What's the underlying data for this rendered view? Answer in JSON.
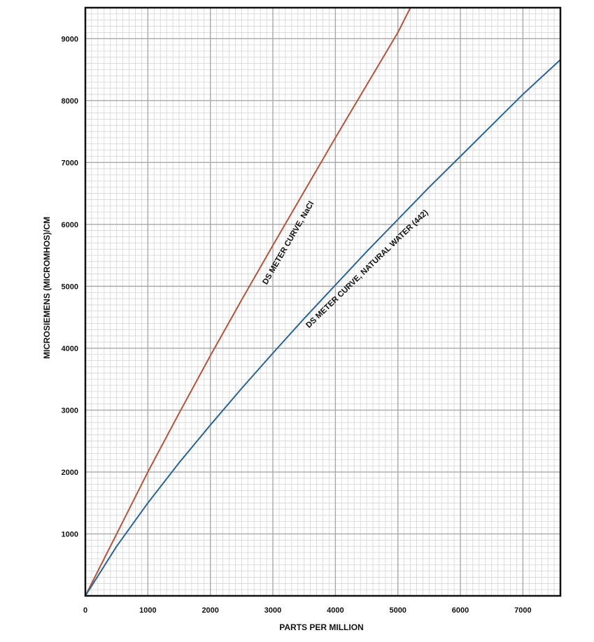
{
  "chart_data": {
    "type": "line",
    "title": "",
    "xlabel": "PARTS PER MILLION",
    "ylabel": "MICROSIEMENS (MICROMHOS)/CM",
    "xlim": [
      0,
      7600
    ],
    "ylim": [
      0,
      9500
    ],
    "x_ticks": [
      "0",
      "1000",
      "2000",
      "3000",
      "4000",
      "5000",
      "6000",
      "7000"
    ],
    "x_tick_values": [
      0,
      1000,
      2000,
      3000,
      4000,
      5000,
      6000,
      7000
    ],
    "y_ticks": [
      "1000",
      "2000",
      "3000",
      "4000",
      "5000",
      "6000",
      "7000",
      "8000",
      "9000"
    ],
    "y_tick_values": [
      1000,
      2000,
      3000,
      4000,
      5000,
      6000,
      7000,
      8000,
      9000
    ],
    "grid": true,
    "legend": "none",
    "series": [
      {
        "name": "DS METER CURVE, NaCl",
        "color": "#b5533c",
        "x": [
          0,
          500,
          1000,
          1500,
          2000,
          2500,
          3000,
          3500,
          4000,
          4500,
          5000,
          5200
        ],
        "y": [
          0,
          1000,
          2000,
          2950,
          3880,
          4780,
          5660,
          6530,
          7400,
          8250,
          9100,
          9500
        ]
      },
      {
        "name": "DS METER CURVE, NATURAL WATER (442)",
        "color": "#2a6496",
        "x": [
          0,
          500,
          1000,
          1500,
          2000,
          2500,
          3000,
          3500,
          4000,
          4500,
          5000,
          5500,
          6000,
          6500,
          7000,
          7600
        ],
        "y": [
          0,
          800,
          1500,
          2150,
          2760,
          3350,
          3920,
          4480,
          5020,
          5560,
          6080,
          6600,
          7100,
          7600,
          8100,
          8660
        ]
      }
    ]
  }
}
